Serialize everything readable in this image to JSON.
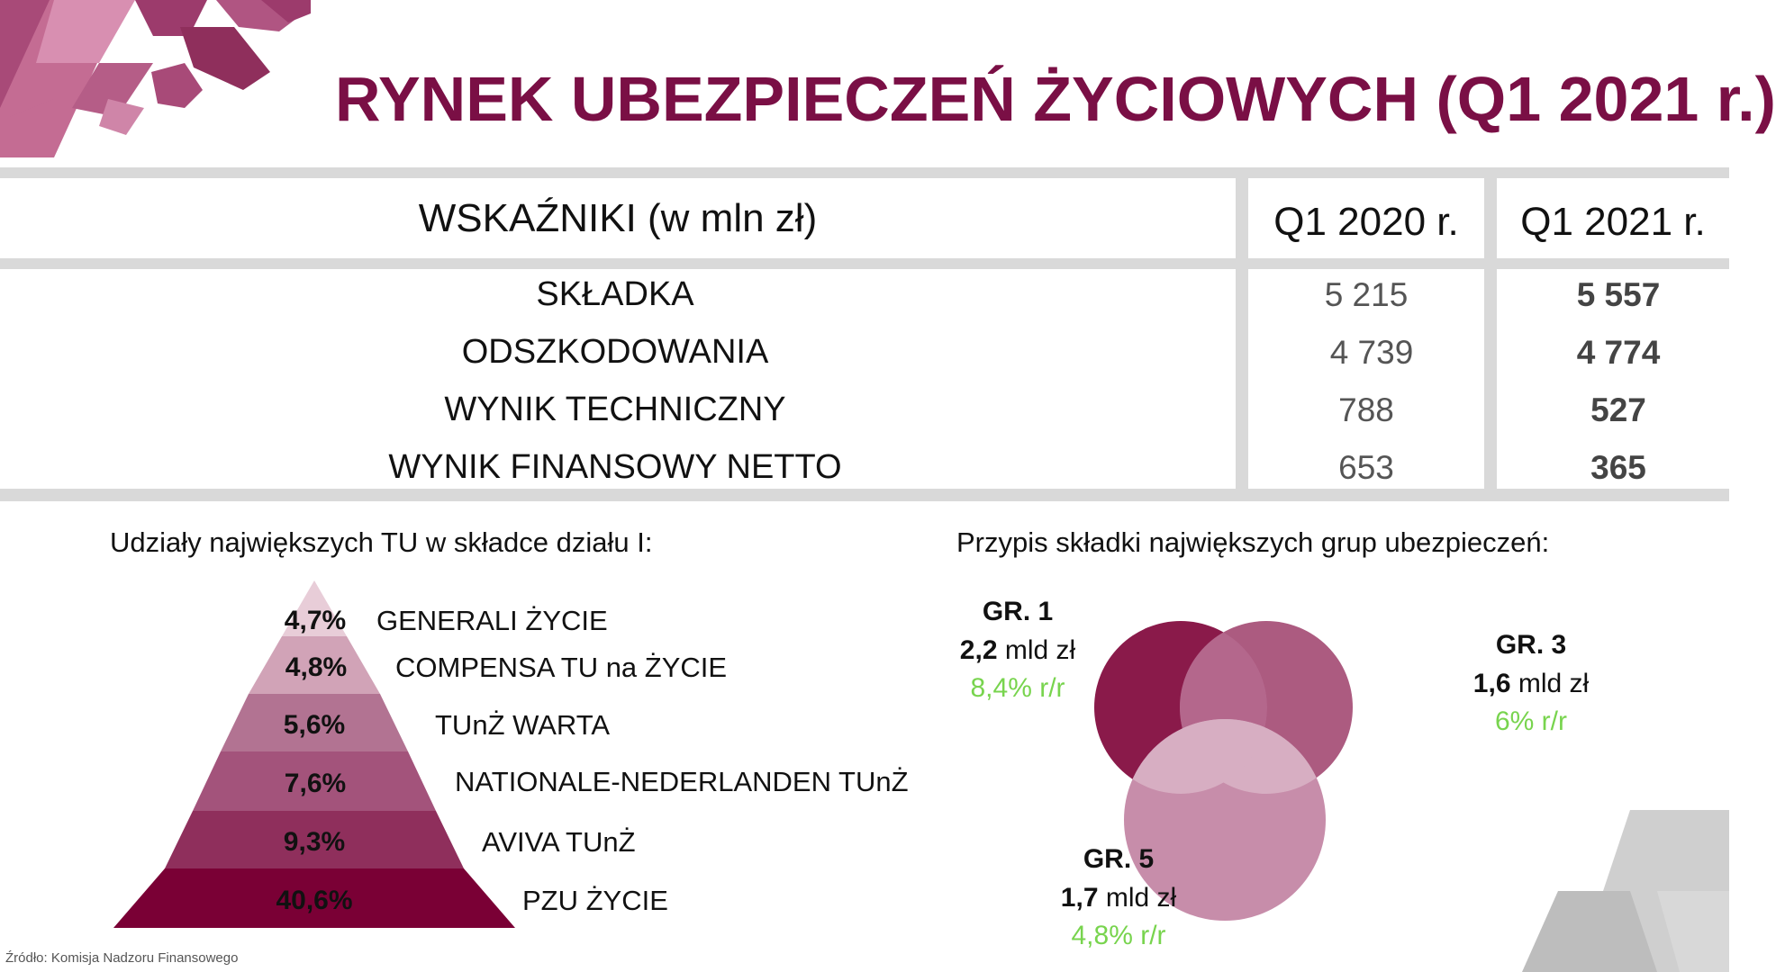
{
  "title": "RYNEK UBEZPIECZEŃ ŻYCIOWYCH (Q1 2021 r.)",
  "table": {
    "header": {
      "label": "WSKAŹNIKI (w mln zł)",
      "col_2020": "Q1 2020 r.",
      "col_2021": "Q1 2021 r."
    },
    "rows": [
      {
        "label": "SKŁADKA",
        "q1_2020": "5 215",
        "q1_2021": "5 557"
      },
      {
        "label": "ODSZKODOWANIA",
        "q1_2020": "4 739",
        "q1_2021": "4 774"
      },
      {
        "label": "WYNIK TECHNICZNY",
        "q1_2020": "788",
        "q1_2021": "527"
      },
      {
        "label": "WYNIK FINANSOWY NETTO",
        "q1_2020": "653",
        "q1_2021": "365"
      }
    ]
  },
  "pyramid": {
    "title": "Udziały największych TU w składce działu I:",
    "levels": [
      {
        "pct": "4,7%",
        "name": "GENERALI ŻYCIE",
        "color": "#e8cdd8"
      },
      {
        "pct": "4,8%",
        "name": "COMPENSA TU na ŻYCIE",
        "color": "#d1a3b7"
      },
      {
        "pct": "5,6%",
        "name": "TUnŻ WARTA",
        "color": "#b27392"
      },
      {
        "pct": "7,6%",
        "name": "NATIONALE-NEDERLANDEN TUnŻ",
        "color": "#a3537b"
      },
      {
        "pct": "9,3%",
        "name": "AVIVA TUnŻ",
        "color": "#8f2f5c"
      },
      {
        "pct": "40,6%",
        "name": "PZU ŻYCIE",
        "color": "#7a0035"
      }
    ]
  },
  "venn": {
    "title": "Przypis składki największych grup ubezpieczeń:",
    "groups": [
      {
        "name": "GR. 1",
        "value_num": "2,2",
        "value_unit": " mld zł",
        "growth": "8,4% r/r",
        "color": "#8a1a4a"
      },
      {
        "name": "GR. 3",
        "value_num": "1,6",
        "value_unit": " mld zł",
        "growth": "6% r/r",
        "color": "#a54d75"
      },
      {
        "name": "GR. 5",
        "value_num": "1,7",
        "value_unit": " mld zł",
        "growth": "4,8% r/r",
        "color": "#c283a3"
      }
    ]
  },
  "source": "Źródło: Komisja Nadzoru Finansowego"
}
